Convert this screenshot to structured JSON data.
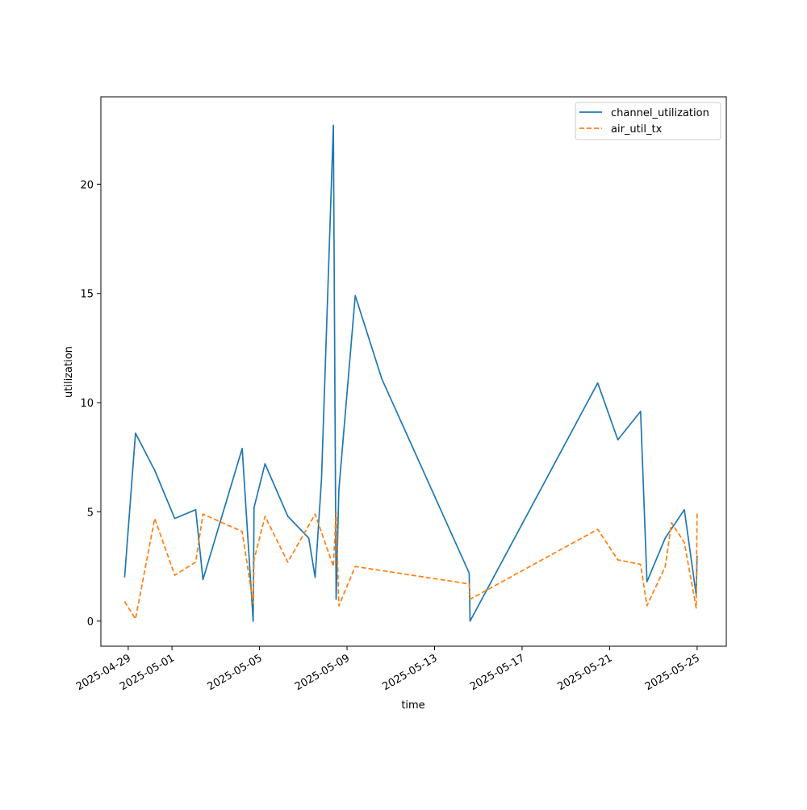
{
  "chart_data": {
    "type": "line",
    "title": "",
    "xlabel": "time",
    "ylabel": "utilization",
    "xlim": [
      "2025-04-27T18:00",
      "2025-05-26T08:00"
    ],
    "ylim": [
      -1.15,
      24.0
    ],
    "yticks": [
      0,
      5,
      10,
      15,
      20
    ],
    "xticks": [
      "2025-04-29",
      "2025-05-01",
      "2025-05-05",
      "2025-05-09",
      "2025-05-13",
      "2025-05-17",
      "2025-05-21",
      "2025-05-25"
    ],
    "grid": false,
    "legend": {
      "position": "top-right"
    },
    "series": [
      {
        "name": "channel_utilization",
        "color": "#1f77b4",
        "style": "solid",
        "x": [
          "2025-04-28T20:00",
          "2025-04-29T08:00",
          "2025-04-30T05:00",
          "2025-05-01T03:00",
          "2025-05-02T02:00",
          "2025-05-02T10:00",
          "2025-05-04T05:00",
          "2025-05-04T17:00",
          "2025-05-04T18:00",
          "2025-05-05T06:00",
          "2025-05-06T07:00",
          "2025-05-07T06:00",
          "2025-05-07T13:00",
          "2025-05-07T20:00",
          "2025-05-08T09:00",
          "2025-05-08T12:00",
          "2025-05-08T15:00",
          "2025-05-09T09:00",
          "2025-05-10T14:00",
          "2025-05-14T14:00",
          "2025-05-14T15:00",
          "2025-05-20T11:00",
          "2025-05-21T09:00",
          "2025-05-22T10:00",
          "2025-05-22T17:00",
          "2025-05-23T13:00",
          "2025-05-24T10:00",
          "2025-05-24T23:00",
          "2025-05-25T00:00"
        ],
        "y": [
          2.0,
          8.6,
          6.9,
          4.7,
          5.1,
          1.9,
          7.9,
          0.0,
          5.2,
          7.2,
          4.8,
          3.8,
          2.0,
          6.5,
          22.7,
          1.0,
          6.0,
          14.9,
          11.1,
          2.2,
          0.0,
          10.9,
          8.3,
          9.6,
          1.8,
          3.8,
          5.1,
          1.2,
          3.0
        ]
      },
      {
        "name": "air_util_tx",
        "color": "#ff7f0e",
        "style": "dashed",
        "x": [
          "2025-04-28T20:00",
          "2025-04-29T08:00",
          "2025-04-30T05:00",
          "2025-05-01T03:00",
          "2025-05-02T02:00",
          "2025-05-02T10:00",
          "2025-05-04T05:00",
          "2025-05-04T17:00",
          "2025-05-04T18:00",
          "2025-05-05T06:00",
          "2025-05-06T07:00",
          "2025-05-07T13:00",
          "2025-05-08T09:00",
          "2025-05-08T12:00",
          "2025-05-08T15:00",
          "2025-05-09T09:00",
          "2025-05-14T14:00",
          "2025-05-14T15:00",
          "2025-05-20T11:00",
          "2025-05-21T09:00",
          "2025-05-22T10:00",
          "2025-05-22T17:00",
          "2025-05-23T13:00",
          "2025-05-23T20:00",
          "2025-05-24T10:00",
          "2025-05-24T23:00",
          "2025-05-25T00:00"
        ],
        "y": [
          0.9,
          0.1,
          4.7,
          2.1,
          2.7,
          4.9,
          4.1,
          0.8,
          2.8,
          4.8,
          2.7,
          4.9,
          2.5,
          5.0,
          0.7,
          2.5,
          1.7,
          1.0,
          4.2,
          2.8,
          2.6,
          0.7,
          2.5,
          4.5,
          3.6,
          0.6,
          5.0
        ]
      }
    ]
  }
}
